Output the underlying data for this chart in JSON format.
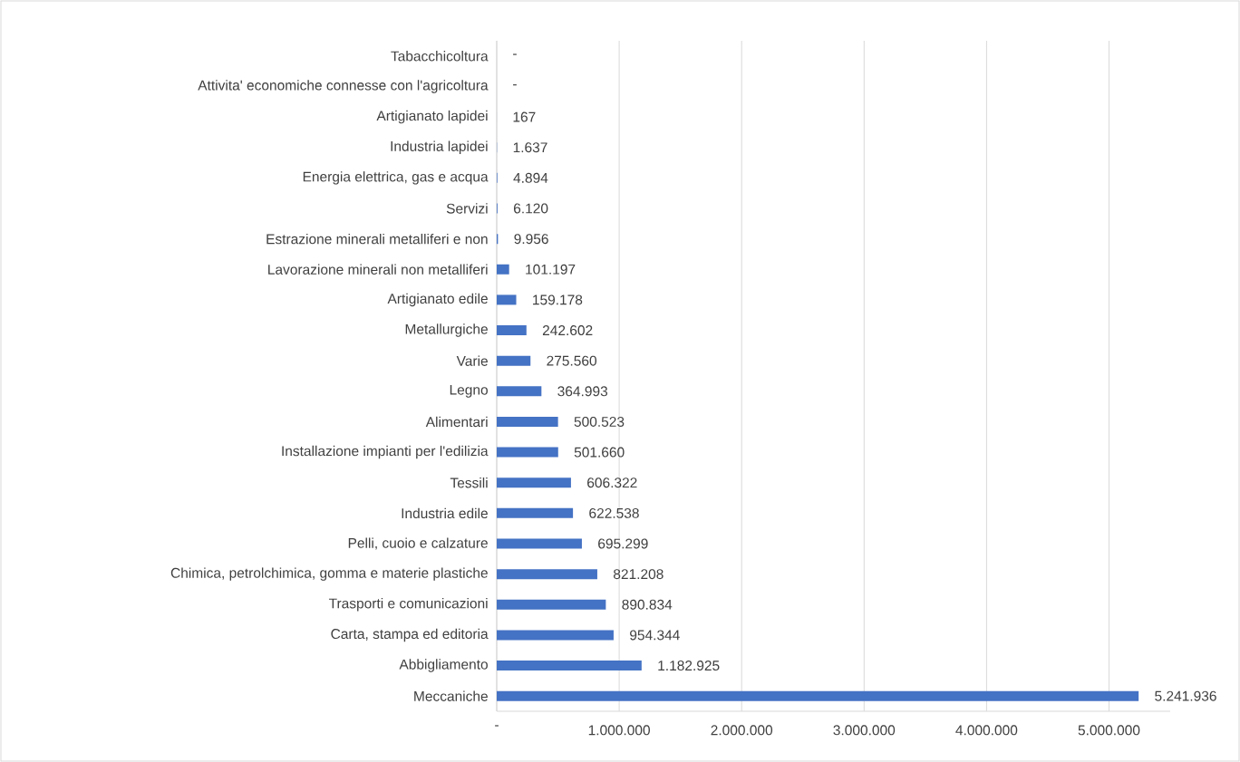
{
  "chart_data": {
    "type": "bar",
    "orientation": "horizontal",
    "color": "#4472c4",
    "categories": [
      "Tabacchicoltura",
      "Attivita' economiche connesse con l'agricoltura",
      "Artigianato lapidei",
      "Industria lapidei",
      "Energia elettrica, gas e acqua",
      "Servizi",
      "Estrazione minerali metalliferi e non",
      "Lavorazione minerali non metalliferi",
      "Artigianato edile",
      "Metallurgiche",
      "Varie",
      "Legno",
      "Alimentari",
      "Installazione impianti per l'edilizia",
      "Tessili",
      "Industria edile",
      "Pelli, cuoio e calzature",
      "Chimica, petrolchimica, gomma e materie plastiche",
      "Trasporti e comunicazioni",
      "Carta, stampa ed editoria",
      "Abbigliamento",
      "Meccaniche"
    ],
    "values": [
      0,
      0,
      167,
      1637,
      4894,
      6120,
      9956,
      101197,
      159178,
      242602,
      275560,
      364993,
      500523,
      501660,
      606322,
      622538,
      695299,
      821208,
      890834,
      954344,
      1182925,
      5241936
    ],
    "value_labels": [
      "-",
      "-",
      "167",
      "1.637",
      "4.894",
      "6.120",
      "9.956",
      "101.197",
      "159.178",
      "242.602",
      "275.560",
      "364.993",
      "500.523",
      "501.660",
      "606.322",
      "622.538",
      "695.299",
      "821.208",
      "890.834",
      "954.344",
      "1.182.925",
      "5.241.936"
    ],
    "xlim": [
      0,
      5500000
    ],
    "xticks": [
      {
        "value": 0,
        "label": "-"
      },
      {
        "value": 1000000,
        "label": "1.000.000"
      },
      {
        "value": 2000000,
        "label": "2.000.000"
      },
      {
        "value": 3000000,
        "label": "3.000.000"
      },
      {
        "value": 4000000,
        "label": "4.000.000"
      },
      {
        "value": 5000000,
        "label": "5.000.000"
      }
    ],
    "grid": "x"
  }
}
